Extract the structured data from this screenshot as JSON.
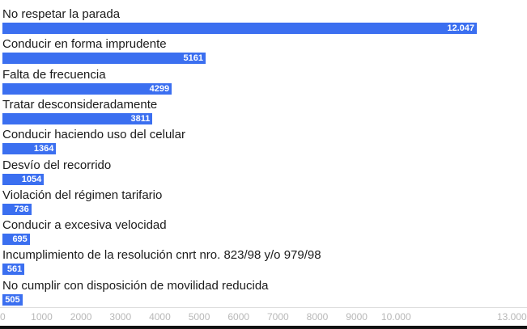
{
  "chart_data": {
    "type": "bar",
    "orientation": "horizontal",
    "bar_color": "#3b6ff0",
    "value_label_color": "#ffffff",
    "categories": [
      "No respetar la parada",
      "Conducir en forma imprudente",
      "Falta de frecuencia",
      "Tratar desconsideradamente",
      "Conducir haciendo uso del celular",
      "Desvío del recorrido",
      "Violación del régimen tarifario",
      "Conducir a excesiva velocidad",
      "Incumplimiento de la resolución cnrt nro. 823/98 y/o 979/98",
      "No cumplir con disposición de movilidad reducida"
    ],
    "values": [
      12047,
      5161,
      4299,
      3811,
      1364,
      1054,
      736,
      695,
      561,
      505
    ],
    "value_labels": [
      "12.047",
      "5161",
      "4299",
      "3811",
      "1364",
      "1054",
      "736",
      "695",
      "561",
      "505"
    ],
    "xlim": [
      0,
      13000
    ],
    "x_ticks": [
      0,
      1000,
      2000,
      3000,
      4000,
      5000,
      6000,
      7000,
      8000,
      9000,
      10000,
      13000
    ],
    "x_tick_labels": [
      "0",
      "1000",
      "2000",
      "3000",
      "4000",
      "5000",
      "6000",
      "7000",
      "8000",
      "9000",
      "10.000",
      "13.000"
    ],
    "grid": false
  }
}
